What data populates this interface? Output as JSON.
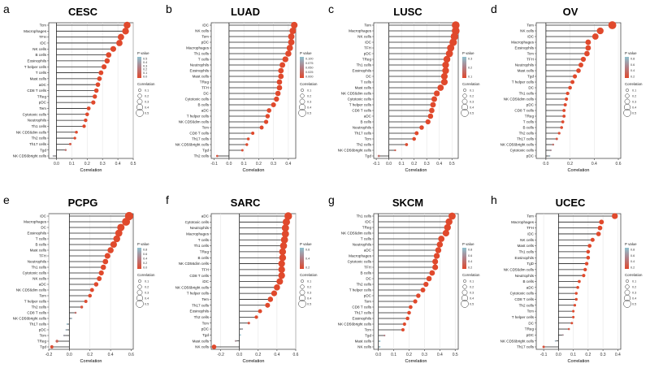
{
  "legend": {
    "pvalue_title": "P value",
    "correlation_title": "Correlation",
    "colors": {
      "low": "#e0492c",
      "high": "#8fc1cf",
      "mid": "#b27e86"
    },
    "size_values": [
      "0.1",
      "0.2",
      "0.3",
      "0.4",
      "0.5"
    ]
  },
  "chart_data": [
    {
      "type": "lollipop",
      "panel": "a",
      "title": "CESC",
      "xlabel": "Correlation",
      "xlim": [
        -0.05,
        0.5
      ],
      "xticks": [
        "0.0",
        "0.1",
        "0.2",
        "0.3",
        "0.4",
        "0.5"
      ],
      "xtick_values": [
        0,
        0.1,
        0.2,
        0.3,
        0.4,
        0.5
      ],
      "pvalue_ticks": [
        "0.5",
        "0.4",
        "0.3",
        "0.2",
        "0.1",
        "0.0"
      ],
      "categories": [
        "Tcm",
        "Macrophages",
        "TFH",
        "iDC",
        "NK cells",
        "B cells",
        "Eosinophils",
        "T helper cells",
        "T cells",
        "Mast cells",
        "aDC",
        "CD8 T cells",
        "TReg",
        "pDC",
        "Tem",
        "Cytotoxic cells",
        "Neutrophils",
        "Th1 cells",
        "NK CD56dim cells",
        "Th2 cells",
        "Th17 cells",
        "Tgd",
        "NK CD56bright cells"
      ],
      "values": [
        0.46,
        0.45,
        0.42,
        0.41,
        0.37,
        0.34,
        0.33,
        0.31,
        0.29,
        0.28,
        0.27,
        0.26,
        0.25,
        0.24,
        0.21,
        0.2,
        0.19,
        0.18,
        0.13,
        0.12,
        0.09,
        0.06,
        -0.02
      ],
      "pvalues": [
        0,
        0,
        0,
        0,
        0,
        0,
        0,
        0,
        0,
        0,
        0,
        0,
        0,
        0,
        0,
        0,
        0,
        0,
        0.01,
        0.02,
        0.1,
        0.3,
        0.6
      ]
    },
    {
      "type": "lollipop",
      "panel": "b",
      "title": "LUAD",
      "xlabel": "Correlation",
      "xlim": [
        -0.12,
        0.45
      ],
      "xticks": [
        "-0.1",
        "0.0",
        "0.1",
        "0.2",
        "0.3",
        "0.4"
      ],
      "xtick_values": [
        -0.1,
        0,
        0.1,
        0.2,
        0.3,
        0.4
      ],
      "pvalue_ticks": [
        "0.100",
        "0.075",
        "0.050",
        "0.025",
        "0.000"
      ],
      "categories": [
        "iDC",
        "NK cells",
        "Tem",
        "pDC",
        "Macrophages",
        "Th1 cells",
        "T cells",
        "Neutrophils",
        "Eosinophils",
        "Mast cells",
        "TReg",
        "TFH",
        "DC",
        "Cytotoxic cells",
        "B cells",
        "aDC",
        "T helper cells",
        "NK CD56dim cells",
        "Tcm",
        "CD8 T cells",
        "Th17 cells",
        "NK CD56bright cells",
        "Tgd",
        "Th2 cells"
      ],
      "values": [
        0.44,
        0.43,
        0.42,
        0.42,
        0.41,
        0.4,
        0.38,
        0.36,
        0.35,
        0.35,
        0.34,
        0.34,
        0.33,
        0.32,
        0.3,
        0.27,
        0.26,
        0.25,
        0.22,
        0.16,
        0.13,
        0.12,
        0.09,
        -0.08
      ],
      "pvalues": [
        0,
        0,
        0,
        0,
        0,
        0,
        0,
        0,
        0,
        0,
        0,
        0,
        0,
        0,
        0,
        0,
        0,
        0,
        0,
        0,
        0.003,
        0.006,
        0.04,
        0.09
      ]
    },
    {
      "type": "lollipop",
      "panel": "c",
      "title": "LUSC",
      "xlabel": "Correlation",
      "xlim": [
        -0.12,
        0.55
      ],
      "xticks": [
        "-0.1",
        "0.0",
        "0.1",
        "0.2",
        "0.3",
        "0.4",
        "0.5"
      ],
      "xtick_values": [
        -0.1,
        0,
        0.1,
        0.2,
        0.3,
        0.4,
        0.5
      ],
      "pvalue_ticks": [
        "0.3",
        "0.2",
        "0.1"
      ],
      "categories": [
        "Tem",
        "Macrophages",
        "NK cells",
        "iDC",
        "TFH",
        "pDC",
        "TReg",
        "Th1 cells",
        "Eosinophils",
        "DC",
        "T cells",
        "Mast cells",
        "NK CD56dim cells",
        "Cytotoxic cells",
        "T helper cells",
        "CD8 T cells",
        "aDC",
        "B cells",
        "Neutrophils",
        "Th17 cells",
        "Tcm",
        "Th2 cells",
        "NK CD56bright cells",
        "Tgd"
      ],
      "values": [
        0.53,
        0.53,
        0.52,
        0.51,
        0.49,
        0.48,
        0.46,
        0.45,
        0.45,
        0.44,
        0.44,
        0.41,
        0.38,
        0.36,
        0.35,
        0.34,
        0.33,
        0.31,
        0.26,
        0.22,
        0.2,
        0.14,
        0.05,
        -0.08
      ],
      "pvalues": [
        0,
        0,
        0,
        0,
        0,
        0,
        0,
        0,
        0,
        0,
        0,
        0,
        0,
        0,
        0,
        0,
        0,
        0,
        0,
        0.001,
        0.002,
        0.02,
        0.15,
        0.3
      ]
    },
    {
      "type": "lollipop",
      "panel": "d",
      "title": "OV",
      "xlabel": "Correlation",
      "xlim": [
        -0.08,
        0.62
      ],
      "xticks": [
        "0.0",
        "0.2",
        "0.4",
        "0.6"
      ],
      "xtick_values": [
        0,
        0.2,
        0.4,
        0.6
      ],
      "pvalue_ticks": [
        "0.8",
        "0.6",
        "0.4",
        "0.2"
      ],
      "categories": [
        "Tem",
        "NK cells",
        "iDC",
        "Macrophages",
        "Eosinophils",
        "Tcm",
        "TFH",
        "Neutrophils",
        "Mast cells",
        "Tgd",
        "T helper cells",
        "DC",
        "Th1 cells",
        "NK CD56dim cells",
        "pDC",
        "CD8 T cells",
        "TReg",
        "T cells",
        "B cells",
        "Th2 cells",
        "Th17 cells",
        "NK CD56bright cells",
        "Cytotoxic cells",
        "pDC"
      ],
      "values": [
        0.55,
        0.45,
        0.41,
        0.35,
        0.35,
        0.34,
        0.31,
        0.29,
        0.27,
        0.24,
        0.22,
        0.2,
        0.18,
        0.17,
        0.16,
        0.15,
        0.15,
        0.14,
        0.13,
        0.11,
        0.09,
        0.06,
        0.04,
        0.03
      ],
      "pvalues": [
        0,
        0,
        0,
        0,
        0,
        0,
        0,
        0,
        0,
        0,
        0,
        0,
        0.001,
        0.002,
        0.003,
        0.005,
        0.006,
        0.01,
        0.02,
        0.05,
        0.1,
        0.3,
        0.5,
        0.7
      ]
    },
    {
      "type": "lollipop",
      "panel": "e",
      "title": "PCPG",
      "xlabel": "Correlation",
      "xlim": [
        -0.2,
        0.62
      ],
      "xticks": [
        "-0.2",
        "0.0",
        "0.2",
        "0.4",
        "0.6"
      ],
      "xtick_values": [
        -0.2,
        0,
        0.2,
        0.4,
        0.6
      ],
      "pvalue_ticks": [
        "0.8",
        "0.6",
        "0.4",
        "0.2",
        "0.0"
      ],
      "categories": [
        "iDC",
        "Macrophages",
        "DC",
        "Eosinophils",
        "T cells",
        "B cells",
        "Mast cells",
        "TFH",
        "Neutrophils",
        "Th1 cells",
        "Cytotoxic cells",
        "NK cells",
        "aDC",
        "NK CD56dim cells",
        "Tem",
        "T helper cells",
        "Th2 cells",
        "CD8 T cells",
        "NK CD56bright cells",
        "Th17 cells",
        "pDC",
        "Tcm",
        "TReg",
        "Tgd"
      ],
      "values": [
        0.58,
        0.55,
        0.5,
        0.48,
        0.46,
        0.43,
        0.4,
        0.37,
        0.35,
        0.33,
        0.31,
        0.29,
        0.26,
        0.22,
        0.2,
        0.16,
        0.12,
        0.06,
        0.02,
        -0.02,
        -0.03,
        -0.05,
        -0.12,
        -0.17
      ],
      "pvalues": [
        0,
        0,
        0,
        0,
        0,
        0,
        0,
        0,
        0,
        0,
        0,
        0,
        0,
        0.003,
        0.005,
        0.02,
        0.08,
        0.3,
        0.7,
        0.75,
        0.7,
        0.6,
        0.2,
        0.05
      ]
    },
    {
      "type": "lollipop",
      "panel": "f",
      "title": "SARC",
      "xlabel": "Correlation",
      "xlim": [
        -0.3,
        0.6
      ],
      "xticks": [
        "-0.2",
        "0.0",
        "0.2",
        "0.4",
        "0.6"
      ],
      "xtick_values": [
        -0.2,
        0,
        0.2,
        0.4,
        0.6
      ],
      "pvalue_ticks": [
        "0.6",
        "0.4",
        "0.2"
      ],
      "categories": [
        "aDC",
        "Cytotoxic cells",
        "Neutrophils",
        "Macrophages",
        "T cells",
        "Th1 cells",
        "TReg",
        "B cells",
        "NK CD56dim cells",
        "TFH",
        "CD8 T cells",
        "iDC",
        "NK CD56bright cells",
        "T helper cells",
        "Tem",
        "Th17 cells",
        "Eosinophils",
        "Th2 cells",
        "Tcm",
        "pDC",
        "Tgd",
        "Mast cells",
        "NK cells"
      ],
      "values": [
        0.52,
        0.5,
        0.49,
        0.49,
        0.48,
        0.47,
        0.46,
        0.46,
        0.45,
        0.45,
        0.45,
        0.43,
        0.4,
        0.37,
        0.33,
        0.3,
        0.22,
        0.18,
        0.1,
        0.03,
        0.01,
        -0.04,
        -0.27
      ],
      "pvalues": [
        0,
        0,
        0,
        0,
        0,
        0,
        0,
        0,
        0,
        0,
        0,
        0,
        0,
        0,
        0,
        0,
        0,
        0.004,
        0.1,
        0.6,
        0.8,
        0.5,
        0
      ]
    },
    {
      "type": "lollipop",
      "panel": "g",
      "title": "SKCM",
      "xlabel": "Correlation",
      "xlim": [
        -0.03,
        0.52
      ],
      "xticks": [
        "0.0",
        "0.1",
        "0.2",
        "0.3",
        "0.4",
        "0.5"
      ],
      "xtick_values": [
        0,
        0.1,
        0.2,
        0.3,
        0.4,
        0.5
      ],
      "pvalue_ticks": [
        "0.8",
        "0.6",
        "0.4",
        "0.2"
      ],
      "categories": [
        "Th1 cells",
        "iDC",
        "TReg",
        "NK CD56dim cells",
        "T cells",
        "Neutrophils",
        "aDC",
        "Macrophages",
        "Cytotoxic cells",
        "TFH",
        "B cells",
        "DC",
        "Th2 cells",
        "T helper cells",
        "pDC",
        "Tem",
        "CD8 T cells",
        "Th17 cells",
        "Eosinophils",
        "NK CD56bright cells",
        "Tcm",
        "Tgd",
        "Mast cells",
        "NK cells"
      ],
      "values": [
        0.48,
        0.46,
        0.45,
        0.44,
        0.41,
        0.4,
        0.39,
        0.38,
        0.37,
        0.37,
        0.35,
        0.33,
        0.31,
        0.29,
        0.26,
        0.24,
        0.21,
        0.2,
        0.19,
        0.17,
        0.16,
        0.04,
        0.01,
        0.01
      ],
      "pvalues": [
        0,
        0,
        0,
        0,
        0,
        0,
        0,
        0,
        0,
        0,
        0,
        0,
        0,
        0,
        0,
        0,
        0,
        0,
        0,
        0,
        0.001,
        0.4,
        0.8,
        0.85
      ]
    },
    {
      "type": "lollipop",
      "panel": "h",
      "title": "UCEC",
      "xlabel": "Correlation",
      "xlim": [
        -0.15,
        0.42
      ],
      "xticks": [
        "-0.1",
        "0.0",
        "0.1",
        "0.2",
        "0.3",
        "0.4"
      ],
      "xtick_values": [
        -0.1,
        0,
        0.1,
        0.2,
        0.3,
        0.4
      ],
      "pvalue_ticks": [
        "0.8",
        "0.6",
        "0.4",
        "0.2"
      ],
      "categories": [
        "Tem",
        "Macrophages",
        "TFH",
        "iDC",
        "NK cells",
        "Mast cells",
        "Th1 cells",
        "Eosinophils",
        "TgD",
        "NK CD56dim cells",
        "Neutrophils",
        "B cells",
        "aDC",
        "Cytotoxic cells",
        "CD8 T cells",
        "Th2 cells",
        "Tcm",
        "T helper cells",
        "DC",
        "TReg",
        "pDC",
        "NK CD56bright cells",
        "Th17 cells"
      ],
      "values": [
        0.38,
        0.29,
        0.28,
        0.27,
        0.23,
        0.21,
        0.2,
        0.2,
        0.19,
        0.18,
        0.17,
        0.14,
        0.13,
        0.12,
        0.12,
        0.11,
        0.1,
        0.1,
        0.09,
        0.07,
        0.03,
        -0.02,
        -0.1
      ],
      "pvalues": [
        0,
        0,
        0,
        0,
        0,
        0,
        0,
        0,
        0,
        0,
        0,
        0.001,
        0.003,
        0.005,
        0.006,
        0.01,
        0.02,
        0.02,
        0.04,
        0.1,
        0.5,
        0.7,
        0.06
      ]
    }
  ]
}
